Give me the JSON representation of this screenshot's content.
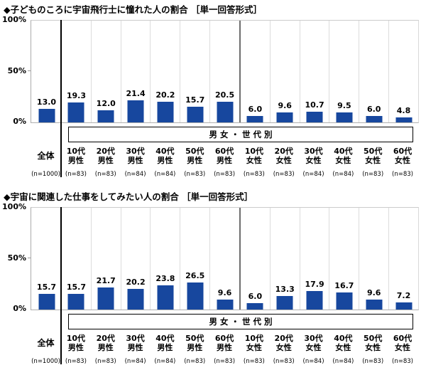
{
  "colors": {
    "bar": "#17479e",
    "grid_light": "#dcdcdc",
    "axis": "#b0b0b0",
    "separator_black": "#000000",
    "separator_gray": "#6e6e6e"
  },
  "chart_data": [
    {
      "type": "bar",
      "title": "◆子どものころに宇宙飛行士に憧れた人の割合 ［単一回答形式］",
      "categories": [
        "全体",
        "10代男性",
        "20代男性",
        "30代男性",
        "40代男性",
        "50代男性",
        "60代男性",
        "10代女性",
        "20代女性",
        "30代女性",
        "40代女性",
        "50代女性",
        "60代女性"
      ],
      "category_lines": [
        [
          "全体"
        ],
        [
          "10代",
          "男性"
        ],
        [
          "20代",
          "男性"
        ],
        [
          "30代",
          "男性"
        ],
        [
          "40代",
          "男性"
        ],
        [
          "50代",
          "男性"
        ],
        [
          "60代",
          "男性"
        ],
        [
          "10代",
          "女性"
        ],
        [
          "20代",
          "女性"
        ],
        [
          "30代",
          "女性"
        ],
        [
          "40代",
          "女性"
        ],
        [
          "50代",
          "女性"
        ],
        [
          "60代",
          "女性"
        ]
      ],
      "n_labels": [
        "(n=1000)",
        "(n=83)",
        "(n=83)",
        "(n=84)",
        "(n=84)",
        "(n=83)",
        "(n=83)",
        "(n=83)",
        "(n=83)",
        "(n=84)",
        "(n=84)",
        "(n=83)",
        "(n=83)"
      ],
      "values": [
        13.0,
        19.3,
        12.0,
        21.4,
        20.2,
        15.7,
        20.5,
        6.0,
        9.6,
        10.7,
        9.5,
        6.0,
        4.8
      ],
      "value_labels": [
        "13.0",
        "19.3",
        "12.0",
        "21.4",
        "20.2",
        "15.7",
        "20.5",
        "6.0",
        "9.6",
        "10.7",
        "9.5",
        "6.0",
        "4.8"
      ],
      "group_label": "男女・世代別",
      "y_ticks": [
        "100%",
        "50%",
        "0%"
      ],
      "ylim": [
        0,
        100
      ],
      "bar_color": "#17479e",
      "xlabel": "",
      "ylabel": "",
      "grid": "vertical-category-separators-only",
      "legend": "none"
    },
    {
      "type": "bar",
      "title": "◆宇宙に関連した仕事をしてみたい人の割合 ［単一回答形式］",
      "categories": [
        "全体",
        "10代男性",
        "20代男性",
        "30代男性",
        "40代男性",
        "50代男性",
        "60代男性",
        "10代女性",
        "20代女性",
        "30代女性",
        "40代女性",
        "50代女性",
        "60代女性"
      ],
      "category_lines": [
        [
          "全体"
        ],
        [
          "10代",
          "男性"
        ],
        [
          "20代",
          "男性"
        ],
        [
          "30代",
          "男性"
        ],
        [
          "40代",
          "男性"
        ],
        [
          "50代",
          "男性"
        ],
        [
          "60代",
          "男性"
        ],
        [
          "10代",
          "女性"
        ],
        [
          "20代",
          "女性"
        ],
        [
          "30代",
          "女性"
        ],
        [
          "40代",
          "女性"
        ],
        [
          "50代",
          "女性"
        ],
        [
          "60代",
          "女性"
        ]
      ],
      "n_labels": [
        "(n=1000)",
        "(n=83)",
        "(n=83)",
        "(n=84)",
        "(n=84)",
        "(n=83)",
        "(n=83)",
        "(n=83)",
        "(n=83)",
        "(n=84)",
        "(n=84)",
        "(n=83)",
        "(n=83)"
      ],
      "values": [
        15.7,
        15.7,
        21.7,
        20.2,
        23.8,
        26.5,
        9.6,
        6.0,
        13.3,
        17.9,
        16.7,
        9.6,
        7.2
      ],
      "value_labels": [
        "15.7",
        "15.7",
        "21.7",
        "20.2",
        "23.8",
        "26.5",
        "9.6",
        "6.0",
        "13.3",
        "17.9",
        "16.7",
        "9.6",
        "7.2"
      ],
      "group_label": "男女・世代別",
      "y_ticks": [
        "100%",
        "50%",
        "0%"
      ],
      "ylim": [
        0,
        100
      ],
      "bar_color": "#17479e",
      "xlabel": "",
      "ylabel": "",
      "grid": "vertical-category-separators-only",
      "legend": "none"
    }
  ]
}
